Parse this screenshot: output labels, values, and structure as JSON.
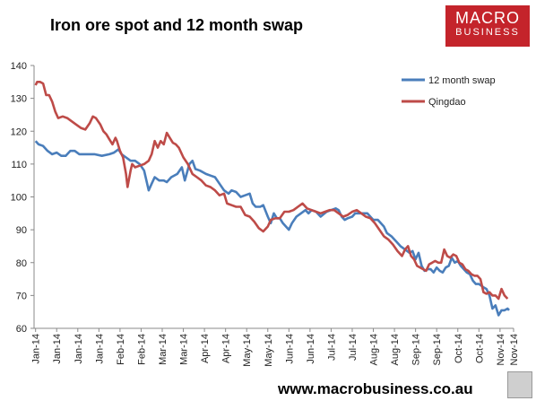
{
  "header": {
    "title": "Iron ore spot and 12 month swap"
  },
  "branding": {
    "logo_line1": "MACRO",
    "logo_line2": "BUSINESS",
    "footer_url": "www.macrobusiness.co.au"
  },
  "colors": {
    "swap": "#4a7ebb",
    "qingdao": "#be4b48",
    "logo_bg": "#c4242b"
  },
  "chart_data": {
    "type": "line",
    "title": "Iron ore spot and 12 month swap",
    "xlabel": "",
    "ylabel": "",
    "ylim": [
      60,
      140
    ],
    "yticks": [
      60,
      70,
      80,
      90,
      100,
      110,
      120,
      130,
      140
    ],
    "xlim": [
      0,
      318
    ],
    "xtick_labels": [
      "Jan-14",
      "Jan-14",
      "Jan-14",
      "Jan-14",
      "Feb-14",
      "Feb-14",
      "Mar-14",
      "Mar-14",
      "Apr-14",
      "Apr-14",
      "May-14",
      "May-14",
      "Jun-14",
      "Jun-14",
      "Jul-14",
      "Jul-14",
      "Aug-14",
      "Aug-14",
      "Sep-14",
      "Sep-14",
      "Oct-14",
      "Oct-14",
      "Nov-14",
      "Nov-14"
    ],
    "xtick_positions": [
      1,
      15,
      29,
      43,
      57,
      71,
      85,
      99,
      113,
      127,
      141,
      155,
      169,
      183,
      197,
      211,
      225,
      239,
      253,
      267,
      281,
      295,
      309,
      318
    ],
    "legend_position": "top-right",
    "grid": false,
    "series": [
      {
        "name": "12 month swap",
        "color": "#4a7ebb",
        "points": [
          [
            1,
            117
          ],
          [
            3,
            116
          ],
          [
            6,
            115.5
          ],
          [
            9,
            114
          ],
          [
            12,
            113
          ],
          [
            15,
            113.5
          ],
          [
            18,
            112.5
          ],
          [
            21,
            112.5
          ],
          [
            24,
            114
          ],
          [
            27,
            114
          ],
          [
            30,
            113
          ],
          [
            35,
            113
          ],
          [
            40,
            113
          ],
          [
            45,
            112.5
          ],
          [
            50,
            113
          ],
          [
            53,
            113.5
          ],
          [
            56,
            114.5
          ],
          [
            58,
            113
          ],
          [
            61,
            112
          ],
          [
            64,
            111
          ],
          [
            67,
            111
          ],
          [
            70,
            110
          ],
          [
            73,
            108
          ],
          [
            76,
            102
          ],
          [
            78,
            104
          ],
          [
            80,
            106
          ],
          [
            83,
            105
          ],
          [
            86,
            105
          ],
          [
            88,
            104.5
          ],
          [
            91,
            106
          ],
          [
            95,
            107
          ],
          [
            98,
            109
          ],
          [
            100,
            105
          ],
          [
            103,
            110
          ],
          [
            105,
            111
          ],
          [
            107,
            108.5
          ],
          [
            110,
            108
          ],
          [
            114,
            107
          ],
          [
            117,
            106.5
          ],
          [
            120,
            106
          ],
          [
            123,
            104
          ],
          [
            126,
            102
          ],
          [
            129,
            101
          ],
          [
            131,
            102
          ],
          [
            134,
            101.5
          ],
          [
            137,
            100
          ],
          [
            140,
            100.5
          ],
          [
            143,
            101
          ],
          [
            145,
            98
          ],
          [
            147,
            97
          ],
          [
            150,
            97
          ],
          [
            152,
            97.5
          ],
          [
            155,
            94
          ],
          [
            157,
            92
          ],
          [
            159,
            95
          ],
          [
            161,
            93.5
          ],
          [
            163,
            93.5
          ],
          [
            165,
            92
          ],
          [
            167,
            91
          ],
          [
            169,
            90
          ],
          [
            171,
            92
          ],
          [
            174,
            94
          ],
          [
            177,
            95
          ],
          [
            180,
            96
          ],
          [
            182,
            95
          ],
          [
            184,
            96
          ],
          [
            187,
            95.5
          ],
          [
            190,
            94
          ],
          [
            194,
            95.5
          ],
          [
            197,
            96
          ],
          [
            200,
            96.5
          ],
          [
            202,
            96
          ],
          [
            204,
            94
          ],
          [
            206,
            93
          ],
          [
            208,
            93.5
          ],
          [
            211,
            94
          ],
          [
            213,
            95
          ],
          [
            215,
            95
          ],
          [
            218,
            95
          ],
          [
            221,
            95
          ],
          [
            223,
            94
          ],
          [
            225,
            93
          ],
          [
            228,
            93
          ],
          [
            230,
            92
          ],
          [
            232,
            91
          ],
          [
            234,
            89
          ],
          [
            237,
            88
          ],
          [
            240,
            86.5
          ],
          [
            243,
            85
          ],
          [
            246,
            84
          ],
          [
            249,
            83
          ],
          [
            251,
            83.5
          ],
          [
            253,
            81
          ],
          [
            255,
            83
          ],
          [
            257,
            79
          ],
          [
            259,
            77.5
          ],
          [
            261,
            78
          ],
          [
            263,
            78
          ],
          [
            265,
            77
          ],
          [
            267,
            78.5
          ],
          [
            269,
            77.5
          ],
          [
            271,
            77
          ],
          [
            273,
            78.5
          ],
          [
            275,
            79
          ],
          [
            277,
            81.5
          ],
          [
            279,
            80
          ],
          [
            281,
            80.5
          ],
          [
            283,
            79
          ],
          [
            285,
            78
          ],
          [
            287,
            77
          ],
          [
            289,
            76.5
          ],
          [
            291,
            74.5
          ],
          [
            293,
            73.5
          ],
          [
            295,
            73.5
          ],
          [
            298,
            72.5
          ],
          [
            300,
            72
          ],
          [
            302,
            70
          ],
          [
            304,
            66
          ],
          [
            306,
            67
          ],
          [
            308,
            64
          ],
          [
            310,
            65.5
          ],
          [
            312,
            65.5
          ],
          [
            314,
            66
          ],
          [
            315,
            65.5
          ]
        ]
      },
      {
        "name": "Qingdao",
        "color": "#be4b48",
        "points": [
          [
            1,
            134
          ],
          [
            2,
            135
          ],
          [
            4,
            135
          ],
          [
            6,
            134.5
          ],
          [
            8,
            131
          ],
          [
            10,
            131
          ],
          [
            12,
            129
          ],
          [
            14,
            126
          ],
          [
            16,
            124
          ],
          [
            19,
            124.5
          ],
          [
            22,
            124
          ],
          [
            25,
            123
          ],
          [
            28,
            122
          ],
          [
            31,
            121
          ],
          [
            34,
            120.5
          ],
          [
            37,
            122.5
          ],
          [
            39,
            124.5
          ],
          [
            41,
            124
          ],
          [
            44,
            122
          ],
          [
            46,
            120
          ],
          [
            48,
            119
          ],
          [
            50,
            117.5
          ],
          [
            52,
            116
          ],
          [
            54,
            118
          ],
          [
            55,
            117
          ],
          [
            57,
            114
          ],
          [
            59,
            112
          ],
          [
            61,
            107
          ],
          [
            62,
            103
          ],
          [
            64,
            108
          ],
          [
            65,
            110
          ],
          [
            67,
            109
          ],
          [
            70,
            109.5
          ],
          [
            73,
            110
          ],
          [
            76,
            111
          ],
          [
            78,
            113
          ],
          [
            80,
            117
          ],
          [
            82,
            115
          ],
          [
            84,
            117
          ],
          [
            86,
            116
          ],
          [
            88,
            119.5
          ],
          [
            90,
            118
          ],
          [
            92,
            116.5
          ],
          [
            94,
            116
          ],
          [
            96,
            115
          ],
          [
            99,
            112
          ],
          [
            102,
            110
          ],
          [
            105,
            107
          ],
          [
            108,
            106
          ],
          [
            111,
            105
          ],
          [
            114,
            103.5
          ],
          [
            117,
            103
          ],
          [
            120,
            102
          ],
          [
            123,
            100.5
          ],
          [
            126,
            101
          ],
          [
            128,
            98
          ],
          [
            131,
            97.5
          ],
          [
            134,
            97
          ],
          [
            137,
            97
          ],
          [
            140,
            94.5
          ],
          [
            143,
            94
          ],
          [
            146,
            92.5
          ],
          [
            149,
            90.5
          ],
          [
            152,
            89.5
          ],
          [
            155,
            91
          ],
          [
            157,
            93
          ],
          [
            160,
            93.5
          ],
          [
            163,
            93.5
          ],
          [
            166,
            95.5
          ],
          [
            169,
            95.5
          ],
          [
            172,
            96
          ],
          [
            175,
            97
          ],
          [
            178,
            98
          ],
          [
            181,
            96.5
          ],
          [
            184,
            96
          ],
          [
            187,
            95.5
          ],
          [
            190,
            95
          ],
          [
            193,
            95.5
          ],
          [
            196,
            96
          ],
          [
            199,
            96
          ],
          [
            202,
            95
          ],
          [
            205,
            94
          ],
          [
            208,
            94.5
          ],
          [
            211,
            95.5
          ],
          [
            214,
            96
          ],
          [
            217,
            95
          ],
          [
            220,
            94
          ],
          [
            223,
            93.5
          ],
          [
            226,
            92
          ],
          [
            229,
            90
          ],
          [
            232,
            88
          ],
          [
            235,
            87
          ],
          [
            238,
            85.5
          ],
          [
            241,
            83.5
          ],
          [
            244,
            82
          ],
          [
            246,
            84
          ],
          [
            248,
            85
          ],
          [
            250,
            82
          ],
          [
            252,
            81
          ],
          [
            254,
            79
          ],
          [
            256,
            78.5
          ],
          [
            258,
            78
          ],
          [
            260,
            77.5
          ],
          [
            262,
            79.5
          ],
          [
            264,
            80
          ],
          [
            266,
            80.5
          ],
          [
            268,
            80
          ],
          [
            270,
            80
          ],
          [
            272,
            84
          ],
          [
            274,
            82
          ],
          [
            276,
            81.5
          ],
          [
            278,
            82.5
          ],
          [
            280,
            82
          ],
          [
            282,
            80
          ],
          [
            284,
            79.5
          ],
          [
            286,
            78
          ],
          [
            288,
            77.5
          ],
          [
            290,
            76.5
          ],
          [
            292,
            76
          ],
          [
            294,
            76
          ],
          [
            296,
            75
          ],
          [
            298,
            71
          ],
          [
            300,
            70.5
          ],
          [
            302,
            71
          ],
          [
            304,
            70
          ],
          [
            306,
            70
          ],
          [
            308,
            69
          ],
          [
            310,
            72
          ],
          [
            312,
            70
          ],
          [
            314,
            69
          ]
        ]
      }
    ]
  }
}
